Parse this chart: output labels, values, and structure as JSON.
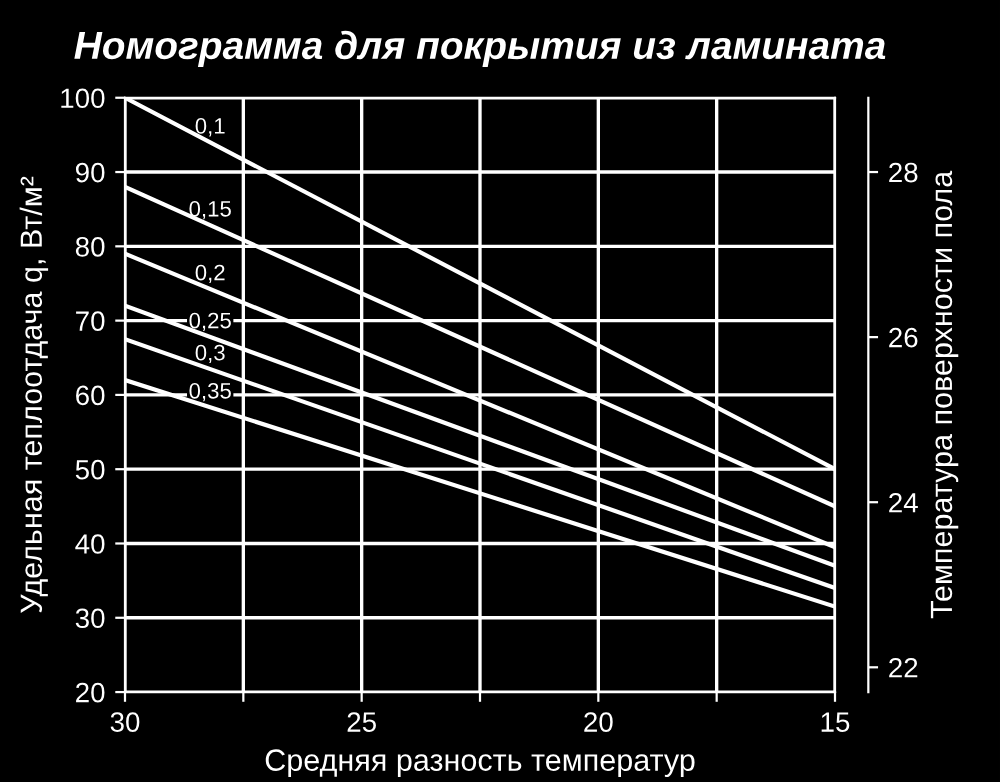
{
  "chart_data": {
    "type": "line",
    "title": "Номограмма для покрытия из ламината",
    "xlabel": "Средняя разность температур",
    "ylabel": "Удельная теплоотдача q, Вт/м²",
    "y2label": "Температура поверхности пола",
    "x": [
      30,
      15
    ],
    "series": [
      {
        "name": "0,1",
        "color": "#ffffff",
        "values": [
          100,
          50
        ]
      },
      {
        "name": "0,15",
        "color": "#ffffff",
        "values": [
          88,
          45
        ]
      },
      {
        "name": "0,2",
        "color": "#ffffff",
        "values": [
          79,
          39.5
        ]
      },
      {
        "name": "0,25",
        "color": "#ffffff",
        "values": [
          72,
          37
        ]
      },
      {
        "name": "0,3",
        "color": "#ffffff",
        "values": [
          67.5,
          34
        ]
      },
      {
        "name": "0,35",
        "color": "#ffffff",
        "values": [
          62,
          31.5
        ]
      }
    ],
    "xlim": [
      30,
      15
    ],
    "xticks": [
      30,
      {
        "value": 27.5,
        "label": null
      },
      25,
      {
        "value": 22.5,
        "label": null
      },
      20,
      {
        "value": 17.5,
        "label": null
      },
      15
    ],
    "ylim": [
      20,
      100
    ],
    "yticks": [
      20,
      30,
      40,
      50,
      60,
      70,
      80,
      90,
      100
    ],
    "y2lim": [
      21.7,
      28.9
    ],
    "y2ticks": [
      22,
      24,
      26,
      28
    ],
    "grid": true,
    "marker": "none",
    "line_style": "solid",
    "legend": false
  }
}
